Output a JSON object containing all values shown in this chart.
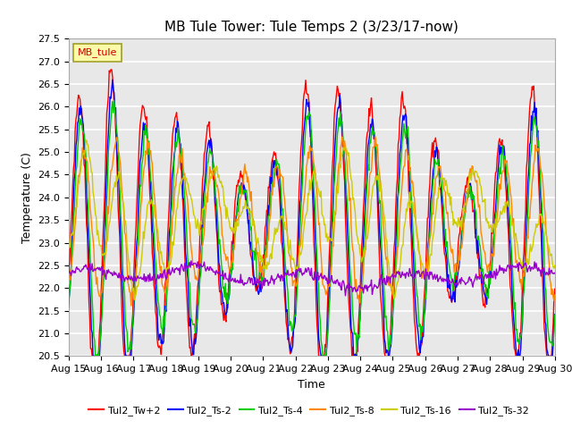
{
  "title": "MB Tule Tower: Tule Temps 2 (3/23/17-now)",
  "xlabel": "Time",
  "ylabel": "Temperature (C)",
  "ylim": [
    20.5,
    27.5
  ],
  "xlim": [
    0,
    15
  ],
  "x_tick_labels": [
    "Aug 15",
    "Aug 16",
    "Aug 17",
    "Aug 18",
    "Aug 19",
    "Aug 20",
    "Aug 21",
    "Aug 22",
    "Aug 23",
    "Aug 24",
    "Aug 25",
    "Aug 26",
    "Aug 27",
    "Aug 28",
    "Aug 29",
    "Aug 30"
  ],
  "legend_label": "MB_tule",
  "series_names": [
    "Tul2_Tw+2",
    "Tul2_Ts-2",
    "Tul2_Ts-4",
    "Tul2_Ts-8",
    "Tul2_Ts-16",
    "Tul2_Ts-32"
  ],
  "series_colors": [
    "#ff0000",
    "#0000ff",
    "#00cc00",
    "#ff8800",
    "#cccc00",
    "#9900cc"
  ],
  "background_color": "#ffffff",
  "grid_color": "#d0d0d0",
  "title_fontsize": 11,
  "axis_fontsize": 9,
  "tick_fontsize": 8
}
